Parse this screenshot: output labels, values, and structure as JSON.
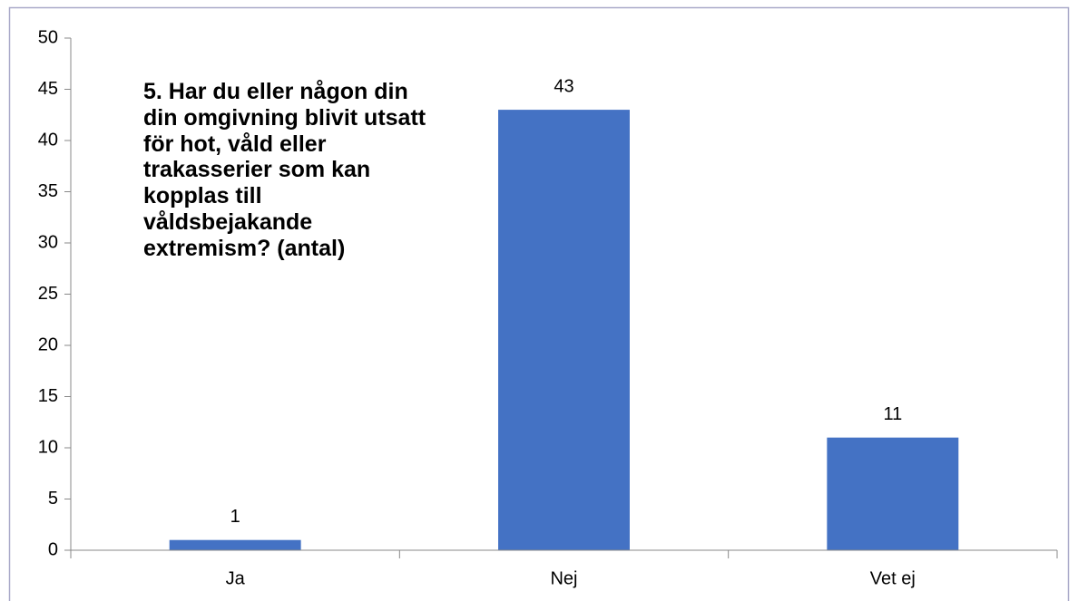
{
  "chart_data": {
    "type": "bar",
    "title": "5. Har du eller någon din din omgivning blivit utsatt för hot, våld eller trakasserier som kan kopplas till våldsbejakande extremism? (antal)",
    "categories": [
      "Ja",
      "Nej",
      "Vet ej"
    ],
    "values": [
      1,
      43,
      11
    ],
    "color": "#4472c4",
    "ylim": [
      0,
      50
    ],
    "yticks": [
      0,
      5,
      10,
      15,
      20,
      25,
      30,
      35,
      40,
      45,
      50
    ],
    "grid": false,
    "data_labels": true
  }
}
